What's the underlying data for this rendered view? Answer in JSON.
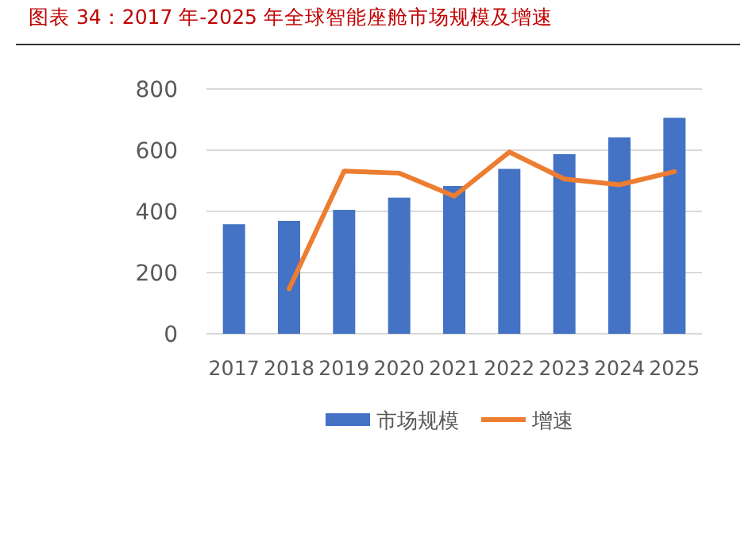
{
  "chart_data": {
    "type": "bar",
    "title": "图表 34：2017 年-2025 年全球智能座舱市场规模及增速",
    "categories": [
      "2017",
      "2018",
      "2019",
      "2020",
      "2021",
      "2022",
      "2023",
      "2024",
      "2025"
    ],
    "series": [
      {
        "name": "市场规模",
        "color": "#4472c4",
        "values": [
          358,
          369,
          405,
          445,
          483,
          539,
          587,
          642,
          706
        ]
      },
      {
        "name": "增速",
        "type": "line",
        "color": "#ed7d31",
        "values": [
          null,
          147,
          532,
          525,
          450,
          594,
          506,
          487,
          530
        ]
      }
    ],
    "ylim": [
      0,
      800
    ],
    "yticks": [
      0,
      200,
      400,
      600,
      800
    ],
    "grid": "y",
    "legend": "bottom"
  }
}
